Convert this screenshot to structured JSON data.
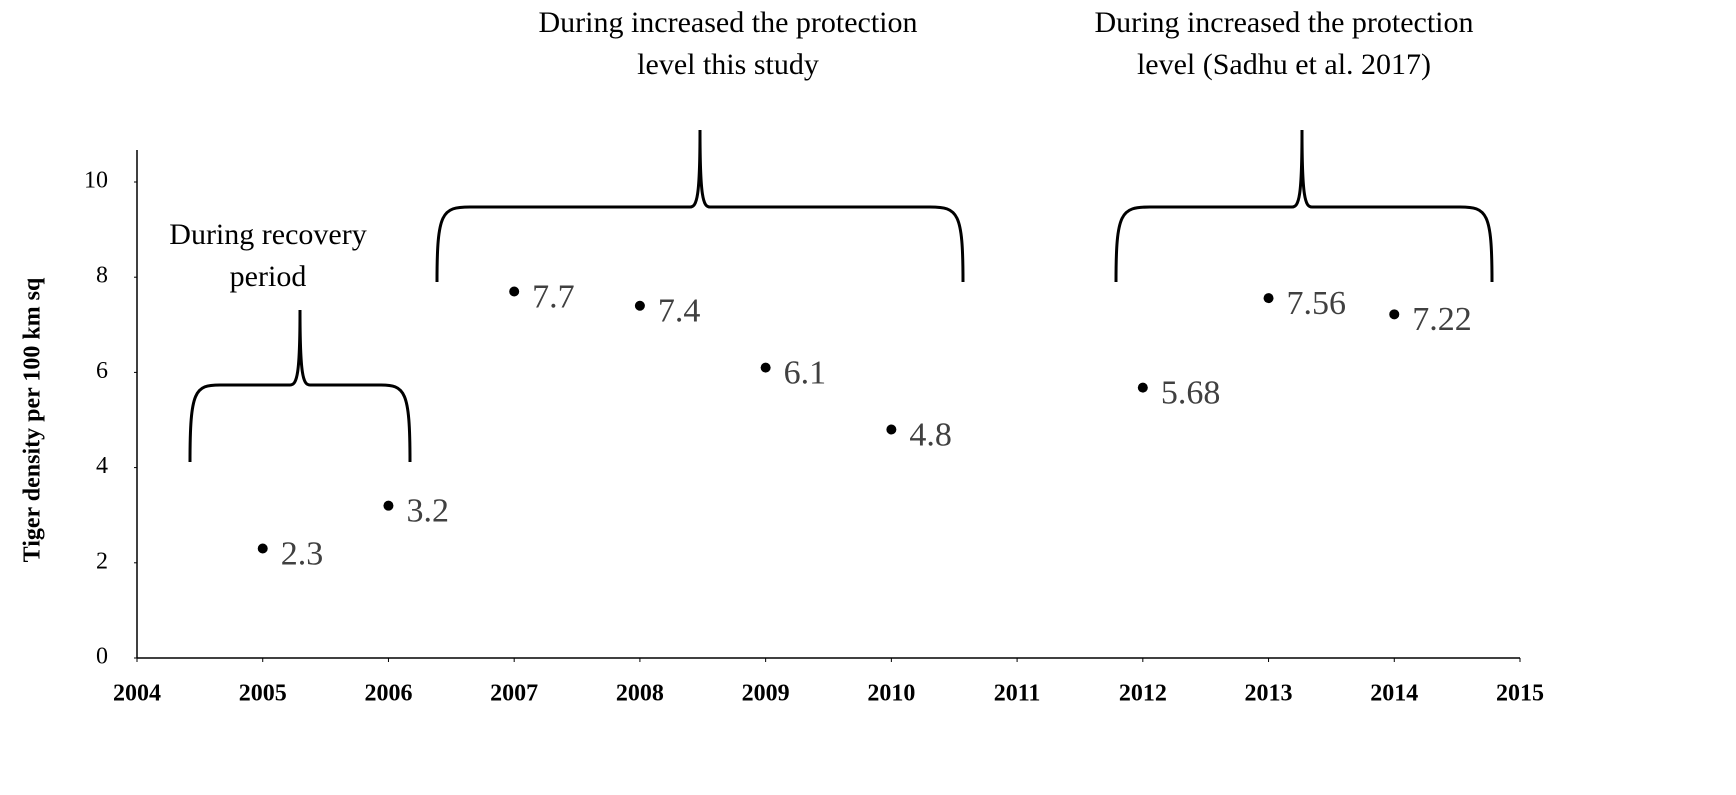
{
  "chart_data": {
    "type": "scatter",
    "y_label": "Tiger density per 100 km sq",
    "x": [
      2005,
      2006,
      2007,
      2008,
      2009,
      2010,
      2012,
      2013,
      2014
    ],
    "values": [
      2.3,
      3.2,
      7.7,
      7.4,
      6.1,
      4.8,
      5.68,
      7.56,
      7.22
    ],
    "color": "#000000",
    "xlim": [
      2004,
      2015
    ],
    "xticks": [
      2004,
      2005,
      2006,
      2007,
      2008,
      2009,
      2010,
      2011,
      2012,
      2013,
      2014,
      2015
    ],
    "ylim": [
      0,
      10
    ],
    "yticks": [
      0,
      2,
      4,
      6,
      8,
      10
    ],
    "annotations": [
      {
        "lines": [
          "During recovery",
          "period"
        ]
      },
      {
        "lines": [
          "During increased the protection",
          "level this study"
        ]
      },
      {
        "lines": [
          "During increased the protection",
          "level (Sadhu et al. 2017)"
        ]
      }
    ]
  }
}
